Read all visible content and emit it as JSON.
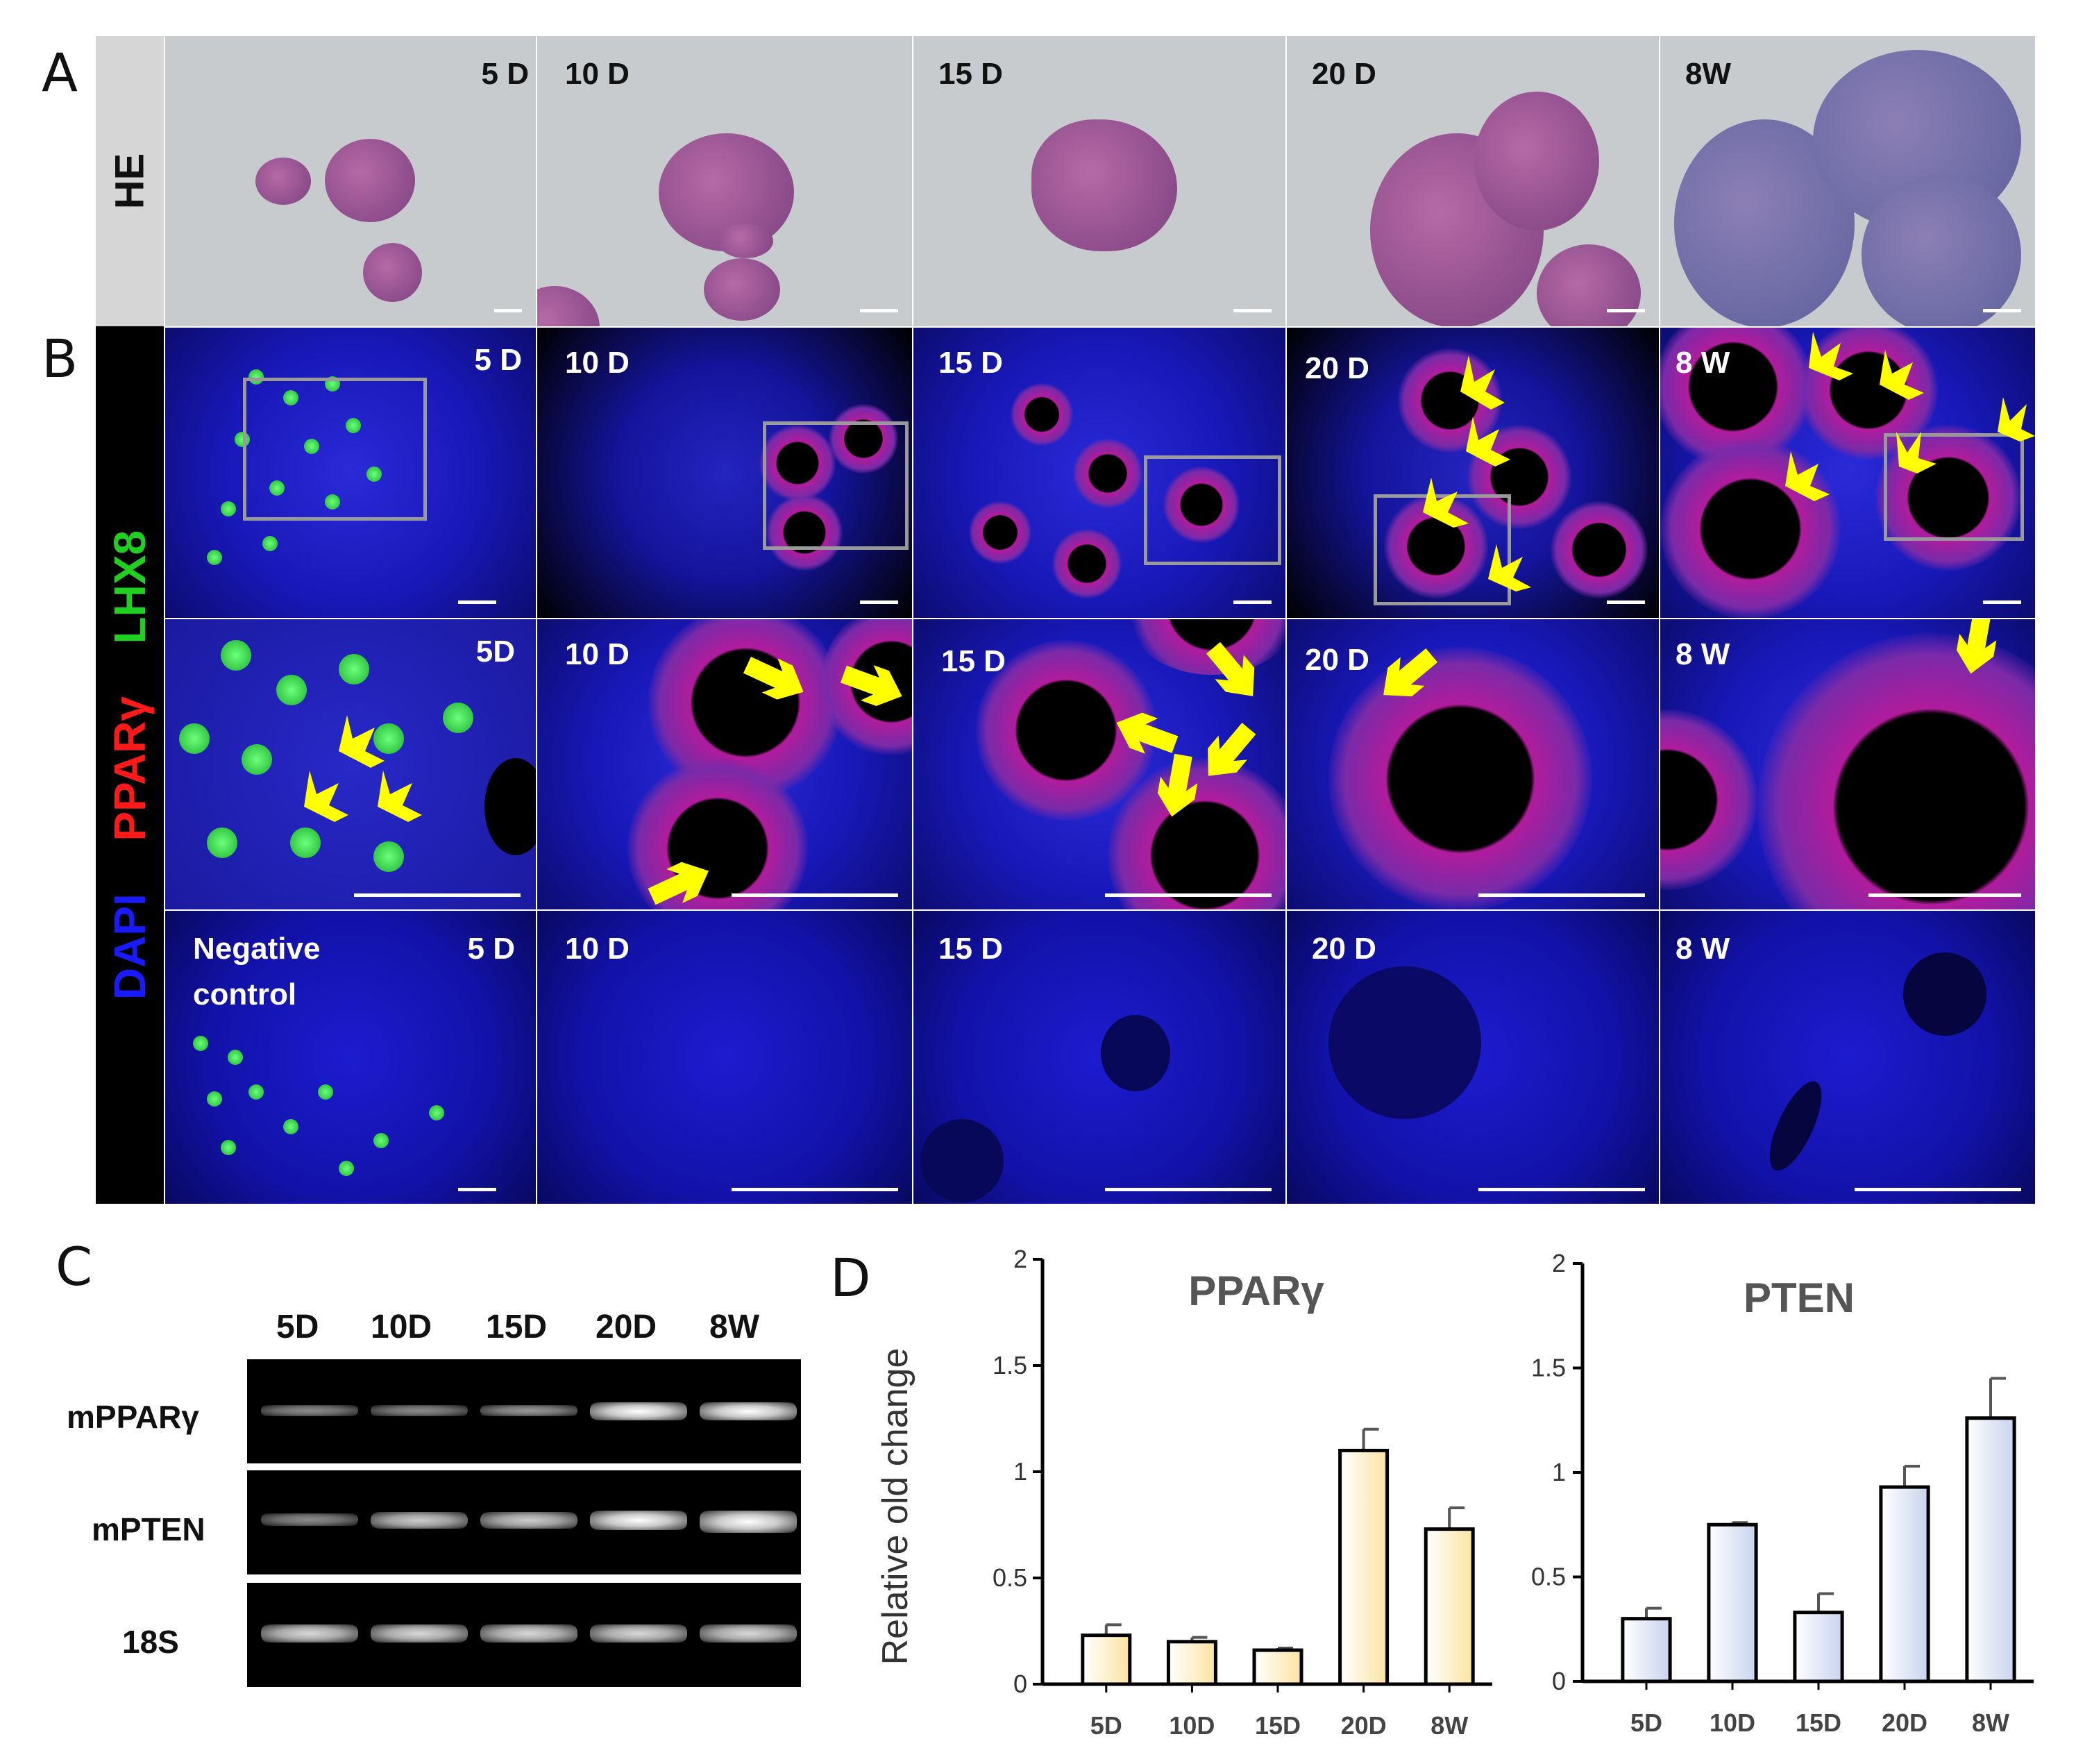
{
  "panel_labels": {
    "a": "A",
    "b": "B",
    "c": "C",
    "d": "D"
  },
  "section_a": {
    "row_label": "HE",
    "timepoints": [
      "5 D",
      "10 D",
      "15 D",
      "20 D",
      "8W"
    ]
  },
  "section_b": {
    "stain_labels": {
      "dapi": "DAPI",
      "ppar": "PPARγ",
      "lhx8": "LHX8"
    },
    "row1_labels": [
      "5 D",
      "10 D",
      "15 D",
      "20 D",
      "8 W"
    ],
    "row2_labels": [
      "5D",
      "10 D",
      "15 D",
      "20 D",
      "8 W"
    ],
    "row3_labels": [
      "5 D",
      "10 D",
      "15 D",
      "20 D",
      "8 W"
    ],
    "negative_control_line1": "Negative",
    "negative_control_line2": "control",
    "colors": {
      "dapi": "#1a1aff",
      "ppar": "#ff1a1a",
      "lhx8": "#20d020",
      "arrow": "#ffff00"
    }
  },
  "section_c": {
    "lanes": [
      "5D",
      "10D",
      "15D",
      "20D",
      "8W"
    ],
    "genes": [
      "mPPARγ",
      "mPTEN",
      "18S"
    ]
  },
  "chart_data": [
    {
      "type": "bar",
      "title": "PPARγ",
      "ylabel": "Relative old change",
      "categories": [
        "5D",
        "10D",
        "15D",
        "20D",
        "8W"
      ],
      "values": [
        0.23,
        0.2,
        0.16,
        1.1,
        0.73
      ],
      "errors": [
        0.05,
        0.02,
        0.01,
        0.1,
        0.1
      ],
      "ylim": [
        0,
        2
      ],
      "yticks": [
        "0",
        "0.5",
        "1",
        "1.5",
        "2"
      ],
      "bar_color": "#fbe3a0"
    },
    {
      "type": "bar",
      "title": "PTEN",
      "ylabel": "",
      "categories": [
        "5D",
        "10D",
        "15D",
        "20D",
        "8W"
      ],
      "values": [
        0.3,
        0.75,
        0.33,
        0.93,
        1.26
      ],
      "errors": [
        0.05,
        0.01,
        0.09,
        0.1,
        0.19
      ],
      "ylim": [
        0,
        2
      ],
      "yticks": [
        "0",
        "0.5",
        "1",
        "1.5",
        "2"
      ],
      "bar_color": "#c8d4ee"
    }
  ]
}
